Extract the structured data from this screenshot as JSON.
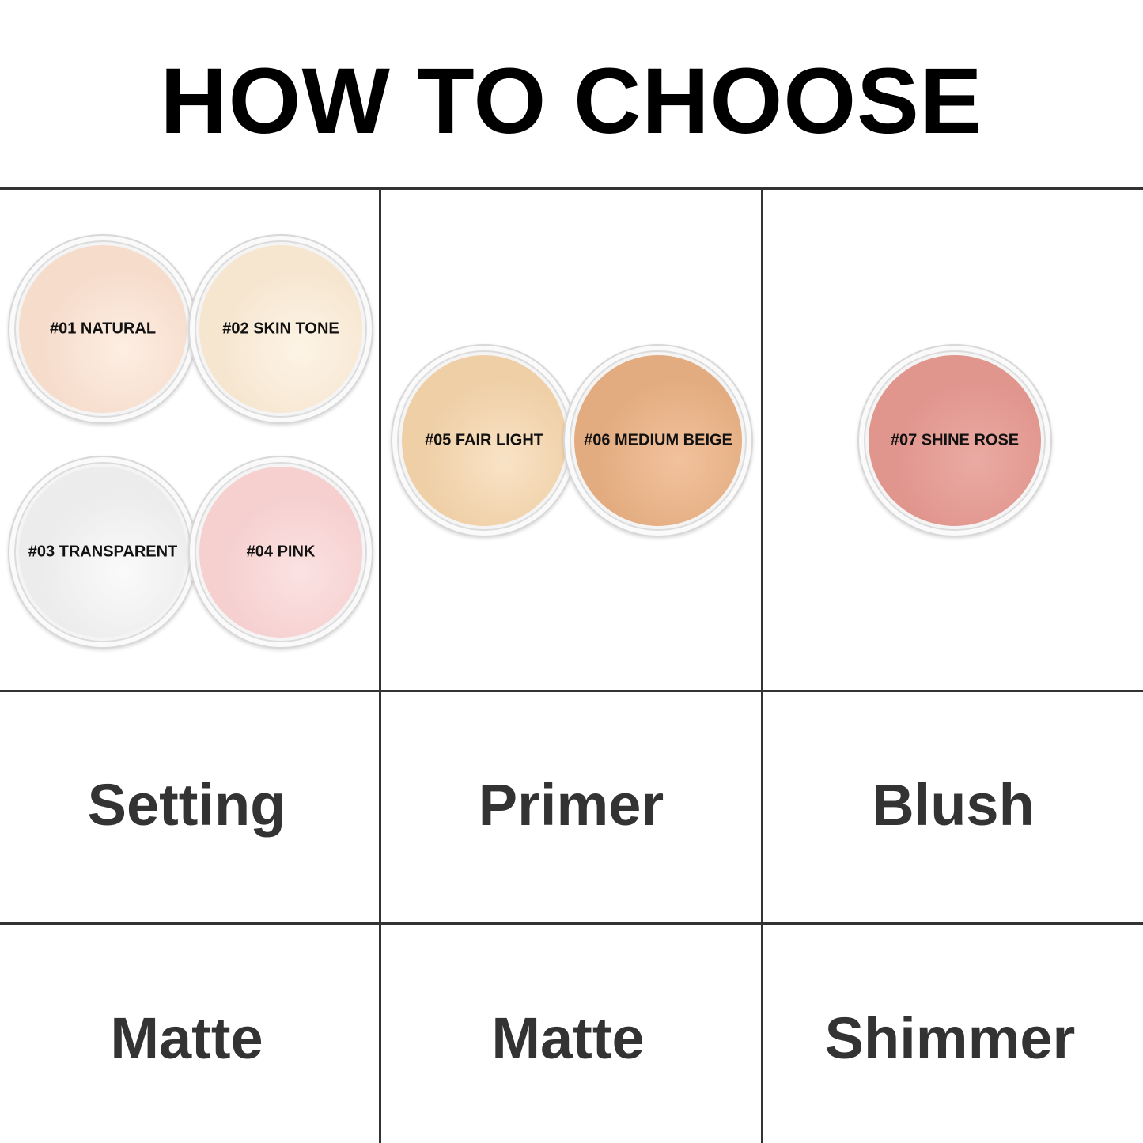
{
  "title": "HOW TO CHOOSE",
  "shades": [
    {
      "label": "#01 NATURAL",
      "color": "#f6dccb",
      "highlight": "#fdeee3"
    },
    {
      "label": "#02 SKIN TONE",
      "color": "#f6e6d0",
      "highlight": "#fdf4e6"
    },
    {
      "label": "#03 TRANSPARENT",
      "color": "#ececec",
      "highlight": "#fafafa"
    },
    {
      "label": "#04 PINK",
      "color": "#f6cfcf",
      "highlight": "#fbe2e2"
    },
    {
      "label": "#05 FAIR LIGHT",
      "color": "#efcfa6",
      "highlight": "#f9e3c6"
    },
    {
      "label": "#06 MEDIUM BEIGE",
      "color": "#e3ac80",
      "highlight": "#f2c29d"
    },
    {
      "label": "#07 SHINE ROSE",
      "color": "#e0958d",
      "highlight": "#eaaaa3"
    }
  ],
  "uses": [
    "Setting",
    "Primer",
    "Blush"
  ],
  "finishes": [
    "Matte",
    "Matte",
    "Shimmer"
  ]
}
